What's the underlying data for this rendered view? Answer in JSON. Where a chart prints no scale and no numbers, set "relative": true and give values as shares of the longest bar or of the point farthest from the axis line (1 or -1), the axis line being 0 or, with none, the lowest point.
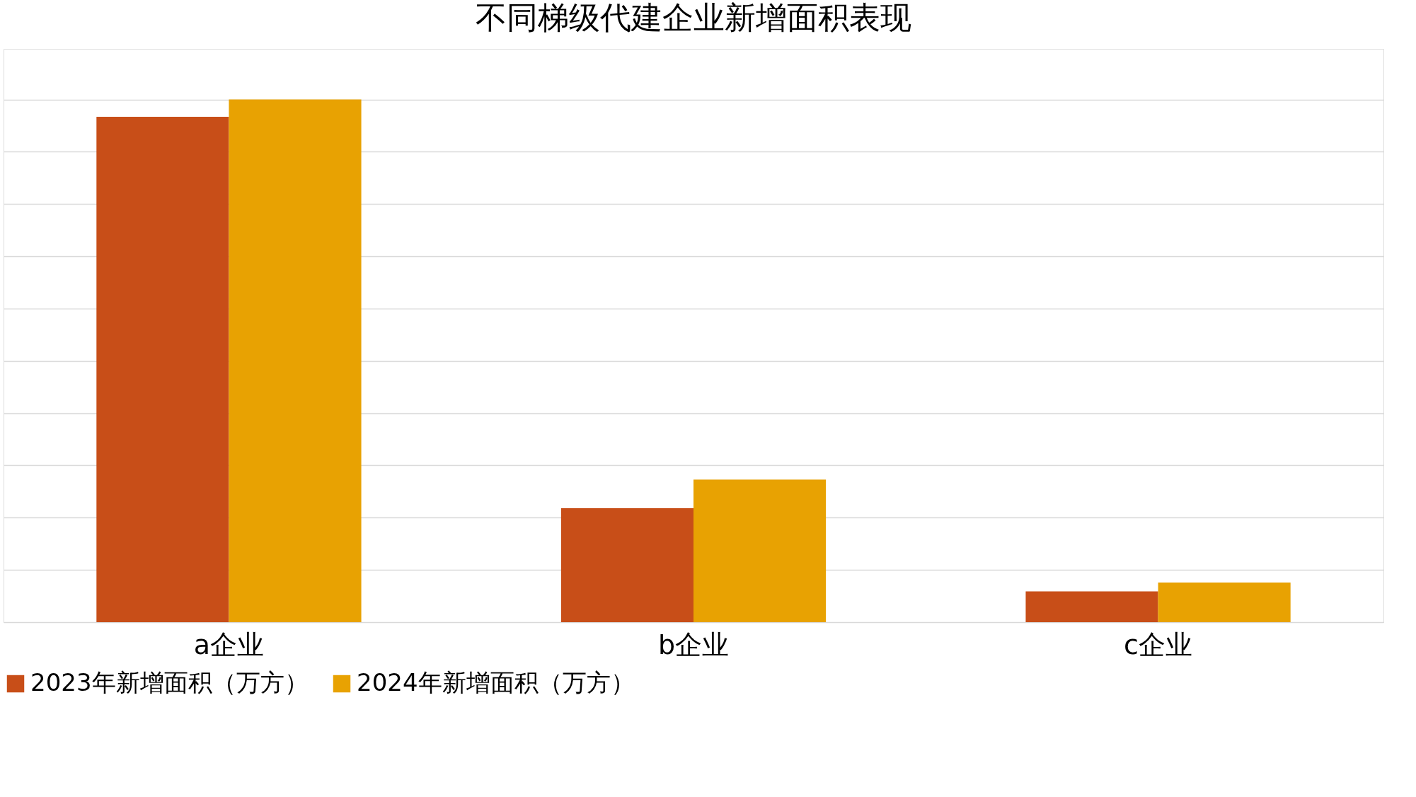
{
  "chart_data": {
    "type": "bar",
    "title": "不同梯级代建企业新增面积表现",
    "relative": true,
    "categories": [
      "a企业",
      "b企业",
      "c企业"
    ],
    "series": [
      {
        "name": "2023年新增面积（万方）",
        "color": "#c84e18",
        "values": [
          0.967,
          0.218,
          0.059
        ]
      },
      {
        "name": "2024年新增面积（万方）",
        "color": "#e8a202",
        "values": [
          1,
          0.273,
          0.076
        ]
      }
    ],
    "grid": "y",
    "legend": "bottom"
  }
}
